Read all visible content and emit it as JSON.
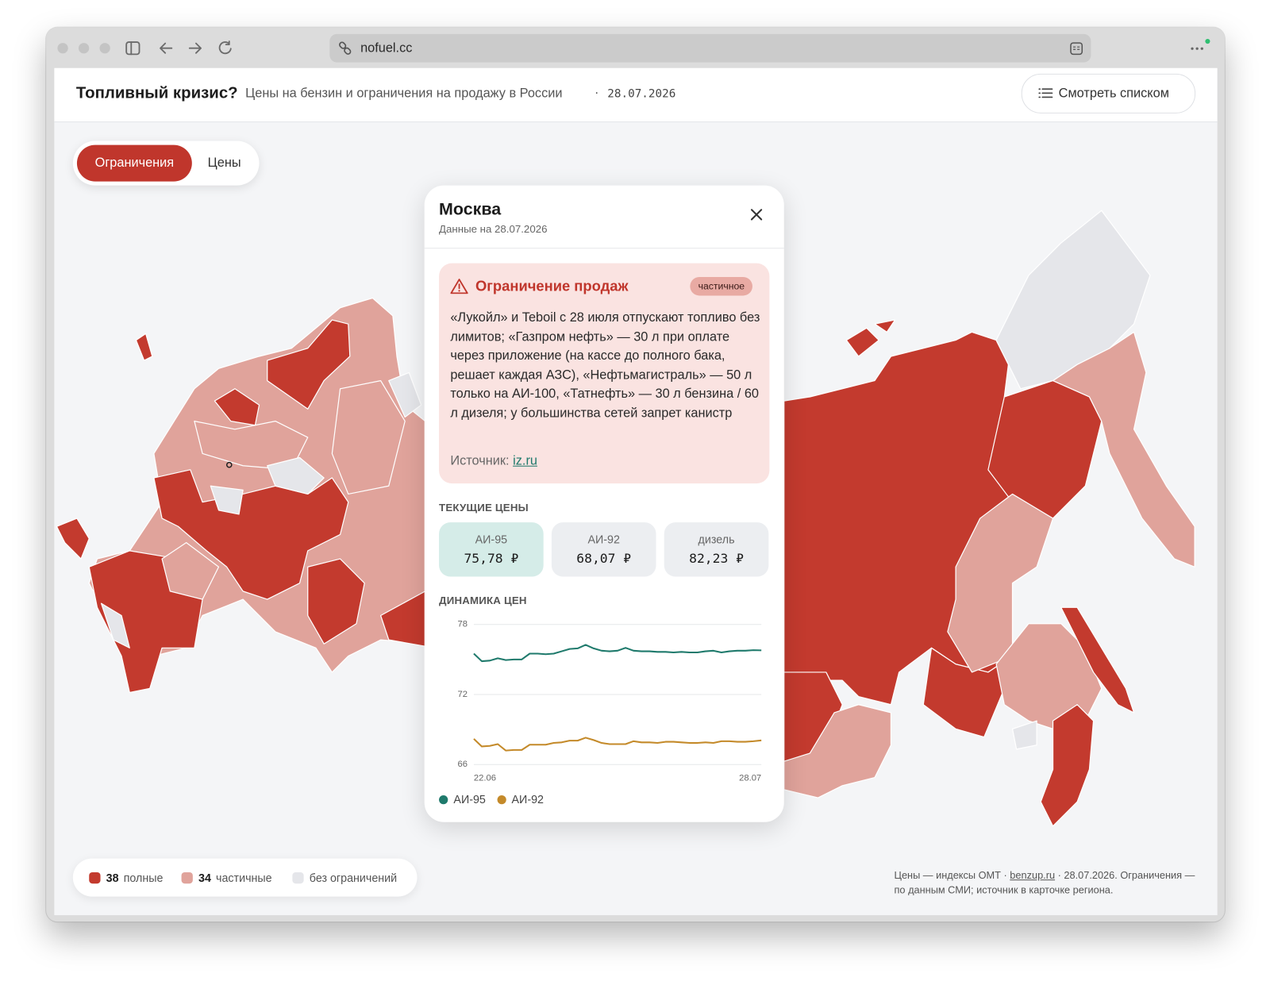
{
  "browser": {
    "url": "nofuel.cc"
  },
  "header": {
    "title": "Топливный кризис?",
    "subtitle": "Цены на бензин и ограничения на продажу в России",
    "separator": "·",
    "date": "28.07.2026",
    "list_button": "Смотреть списком"
  },
  "tabs": [
    "Ограничения",
    "Цены"
  ],
  "popup": {
    "region": "Москва",
    "data_date": "Данные на 28.07.2026",
    "restriction": {
      "title": "Ограничение продаж",
      "badge": "частичное",
      "text": "«Лукойл» и Teboil с 28 июля отпускают топливо без лимитов; «Газпром нефть» — 30 л при оплате через приложение (на кассе до полного бака, решает каждая АЗС), «Нефтьмагистраль» — 50 л только на АИ-100, «Татнефть» — 30 л бензина / 60 л дизеля; у большинства сетей запрет канистр",
      "source_label": "Источник:",
      "source_link": "iz.ru"
    },
    "prices_heading": "ТЕКУЩИЕ ЦЕНЫ",
    "prices": [
      {
        "fuel": "АИ-95",
        "price": "75,78 ₽"
      },
      {
        "fuel": "АИ-92",
        "price": "68,07 ₽"
      },
      {
        "fuel": "дизель",
        "price": "82,23 ₽"
      }
    ]
  },
  "chart_data": {
    "type": "line",
    "title": "ДИНАМИКА ЦЕН",
    "categories": [
      "22.06",
      null,
      null,
      null,
      null,
      null,
      null,
      null,
      null,
      null,
      null,
      null,
      null,
      null,
      null,
      null,
      null,
      null,
      null,
      null,
      null,
      null,
      null,
      null,
      null,
      null,
      null,
      null,
      null,
      null,
      null,
      null,
      null,
      null,
      null,
      null,
      "28.07"
    ],
    "series": [
      {
        "name": "АИ-95",
        "color": "#1f7a6c",
        "values": [
          75.5,
          74.85,
          74.9,
          75.1,
          74.95,
          75.0,
          75.0,
          75.5,
          75.5,
          75.45,
          75.5,
          75.7,
          75.9,
          75.95,
          76.25,
          75.95,
          75.75,
          75.7,
          75.75,
          76.0,
          75.75,
          75.7,
          75.7,
          75.65,
          75.65,
          75.6,
          75.65,
          75.6,
          75.6,
          75.7,
          75.75,
          75.6,
          75.7,
          75.75,
          75.75,
          75.8,
          75.78
        ]
      },
      {
        "name": "АИ-92",
        "color": "#c48a2a",
        "values": [
          68.2,
          67.55,
          67.6,
          67.75,
          67.2,
          67.25,
          67.25,
          67.7,
          67.7,
          67.7,
          67.85,
          67.9,
          68.05,
          68.05,
          68.3,
          68.1,
          67.85,
          67.75,
          67.75,
          67.75,
          68.0,
          67.9,
          67.9,
          67.85,
          67.95,
          67.95,
          67.9,
          67.85,
          67.85,
          67.9,
          67.85,
          68.0,
          68.0,
          67.95,
          67.95,
          68.0,
          68.07
        ]
      }
    ],
    "ylim": [
      66,
      78
    ],
    "yticks": [
      66,
      72,
      78
    ],
    "grid": true
  },
  "legend": [
    {
      "count": 38,
      "label": "полные"
    },
    {
      "count": 34,
      "label": "частичные"
    },
    {
      "label": "без ограничений"
    }
  ],
  "footnote": {
    "before": "Цены — индексы ОМТ ·",
    "link": "benzup.ru",
    "after": "· 28.07.2026. Ограничения — по данным СМИ; источник в карточке региона."
  }
}
